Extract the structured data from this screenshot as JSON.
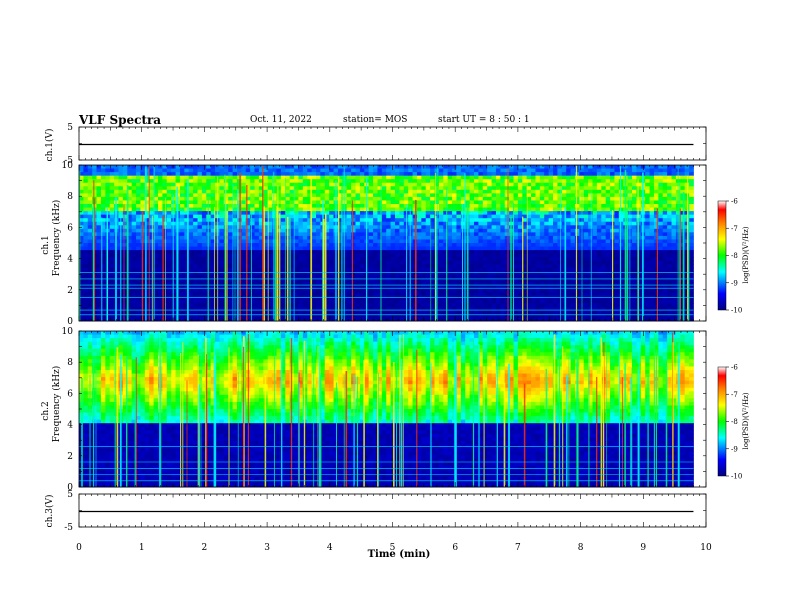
{
  "header": {
    "title": "VLF Spectra",
    "date": "Oct. 11, 2022",
    "station": "station= MOS",
    "start": "start  UT =   8 : 50 : 1"
  },
  "chart_data": [
    {
      "type": "line",
      "panel": "ch1-voltage",
      "ylabel": "ch.1(V)",
      "yticks": [
        "5",
        "-5"
      ],
      "ylim": [
        -5,
        5
      ],
      "x": [
        0,
        9.8
      ],
      "series": [
        {
          "values": [
            -0.3,
            -0.3
          ]
        }
      ]
    },
    {
      "type": "heatmap",
      "panel": "ch1-spectrogram",
      "ylabel_top": "ch.1",
      "ylabel": "Frequency (kHz)",
      "ylim": [
        0,
        10
      ],
      "yticks": [
        "0",
        "2",
        "4",
        "6",
        "8",
        "10"
      ],
      "xlim": [
        0,
        9.8
      ],
      "colorbar": {
        "label": "log(PSD)(V²/Hz)",
        "range": [
          -10,
          -6
        ],
        "ticks": [
          "-6",
          "-7",
          "-8",
          "-9",
          "-10"
        ]
      },
      "band_center_khz": 8.3,
      "tone_lines_khz": [
        0.4,
        0.7,
        1.5,
        2.1,
        2.3,
        2.7,
        3.1
      ]
    },
    {
      "type": "heatmap",
      "panel": "ch2-spectrogram",
      "ylabel_top": "ch.2",
      "ylabel": "Frequency (kHz)",
      "ylim": [
        0,
        10
      ],
      "yticks": [
        "0",
        "2",
        "4",
        "6",
        "8",
        "10"
      ],
      "xlim": [
        0,
        9.8
      ],
      "colorbar": {
        "label": "log(PSD)(V²/Hz)",
        "range": [
          -10,
          -6
        ],
        "ticks": [
          "-6",
          "-7",
          "-8",
          "-9",
          "-10"
        ]
      },
      "band_center_khz": 6.8,
      "tone_lines_khz": [
        0.4,
        0.8,
        1.2,
        1.6,
        2.6
      ]
    },
    {
      "type": "line",
      "panel": "ch3-voltage",
      "ylabel": "ch.3(V)",
      "yticks": [
        "5",
        "-5"
      ],
      "ylim": [
        -5,
        5
      ],
      "x": [
        0,
        9.8
      ],
      "series": [
        {
          "values": [
            -0.3,
            -0.3
          ]
        }
      ]
    }
  ],
  "xaxis": {
    "label": "Time (min)",
    "ticks": [
      "0",
      "1",
      "2",
      "3",
      "4",
      "5",
      "6",
      "7",
      "8",
      "9",
      "10"
    ],
    "xlim": [
      0,
      10
    ]
  },
  "colors": {
    "background": "#000033",
    "colormap": [
      "#00007f",
      "#0000ff",
      "#00ffff",
      "#00ff00",
      "#ffff00",
      "#ff7f00",
      "#ff0000",
      "#ffffff"
    ]
  }
}
